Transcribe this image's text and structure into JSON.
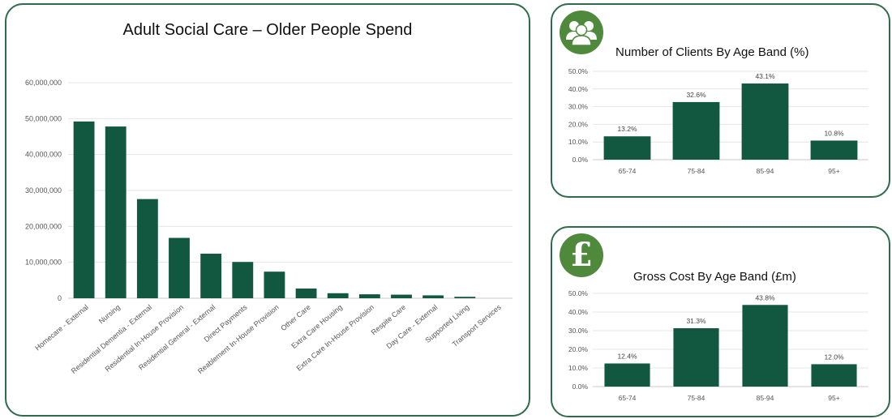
{
  "colors": {
    "bar": "#12573f",
    "border": "#2f6b4a",
    "badge": "#4f8a3c",
    "grid": "#e4e4e4",
    "axis_text": "#555555"
  },
  "icons": {
    "clients_badge": "people-group-icon",
    "cost_badge": "pound-sign-icon",
    "pound_glyph": "£"
  },
  "chart_data": [
    {
      "type": "bar",
      "title": "Adult Social Care – Older People Spend",
      "categories": [
        "Homecare - External",
        "Nursing",
        "Residential Dementia - External",
        "Residential In-House Provision",
        "Residential General - External",
        "Direct Payments",
        "Reablement In-House Provision",
        "Other Care",
        "Extra Care Housing",
        "Extra Care In-House Provision",
        "Respite Care",
        "Day Care - External",
        "Supported Living",
        "Transport Services"
      ],
      "values": [
        49200000,
        47800000,
        27600000,
        16800000,
        12400000,
        10100000,
        7400000,
        2700000,
        1400000,
        1100000,
        1000000,
        800000,
        400000,
        0
      ],
      "ylim": [
        0,
        60000000
      ],
      "yticks": [
        "0",
        "10,000,000",
        "20,000,000",
        "30,000,000",
        "40,000,000",
        "50,000,000",
        "60,000,000"
      ],
      "xlabel": "",
      "ylabel": "",
      "grid": true
    },
    {
      "type": "bar",
      "title": "Number of Clients By Age Band (%)",
      "categories": [
        "65-74",
        "75-84",
        "85-94",
        "95+"
      ],
      "values": [
        13.2,
        32.6,
        43.1,
        10.8
      ],
      "data_labels": [
        "13.2%",
        "32.6%",
        "43.1%",
        "10.8%"
      ],
      "ylim": [
        0,
        50
      ],
      "yticks": [
        "0.0%",
        "10.0%",
        "20.0%",
        "30.0%",
        "40.0%",
        "50.0%"
      ],
      "xlabel": "",
      "ylabel": "",
      "grid": true
    },
    {
      "type": "bar",
      "title": "Gross Cost By Age Band (£m)",
      "categories": [
        "65-74",
        "75-84",
        "85-94",
        "95+"
      ],
      "values": [
        12.4,
        31.3,
        43.8,
        12.0
      ],
      "data_labels": [
        "12.4%",
        "31.3%",
        "43.8%",
        "12.0%"
      ],
      "ylim": [
        0,
        50
      ],
      "yticks": [
        "0.0%",
        "10.0%",
        "20.0%",
        "30.0%",
        "40.0%",
        "50.0%"
      ],
      "xlabel": "",
      "ylabel": "",
      "grid": true
    }
  ]
}
